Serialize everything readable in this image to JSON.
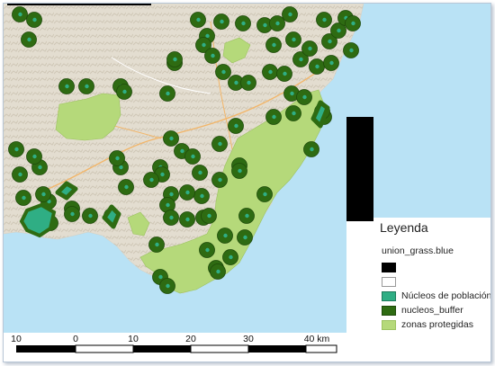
{
  "legend": {
    "title": "Leyenda",
    "layer": "union_grass.blue",
    "items": [
      {
        "label": "",
        "color": "#000000"
      },
      {
        "label": "",
        "color": "#ffffff"
      },
      {
        "label": "Núcleos de población",
        "color": "#2fae84"
      },
      {
        "label": "nucleos_buffer",
        "color": "#2e6b12"
      },
      {
        "label": "zonas protegidas",
        "color": "#b5d97a"
      }
    ]
  },
  "scale_bar": {
    "labels": [
      "10",
      "0",
      "10",
      "20",
      "30",
      "40 km"
    ]
  },
  "colors": {
    "sea": "#b9e2f5",
    "land": "#e5dfd2",
    "protected": "#b5d97a",
    "buffer": "#2e6b12",
    "nucleus": "#2fae84"
  }
}
